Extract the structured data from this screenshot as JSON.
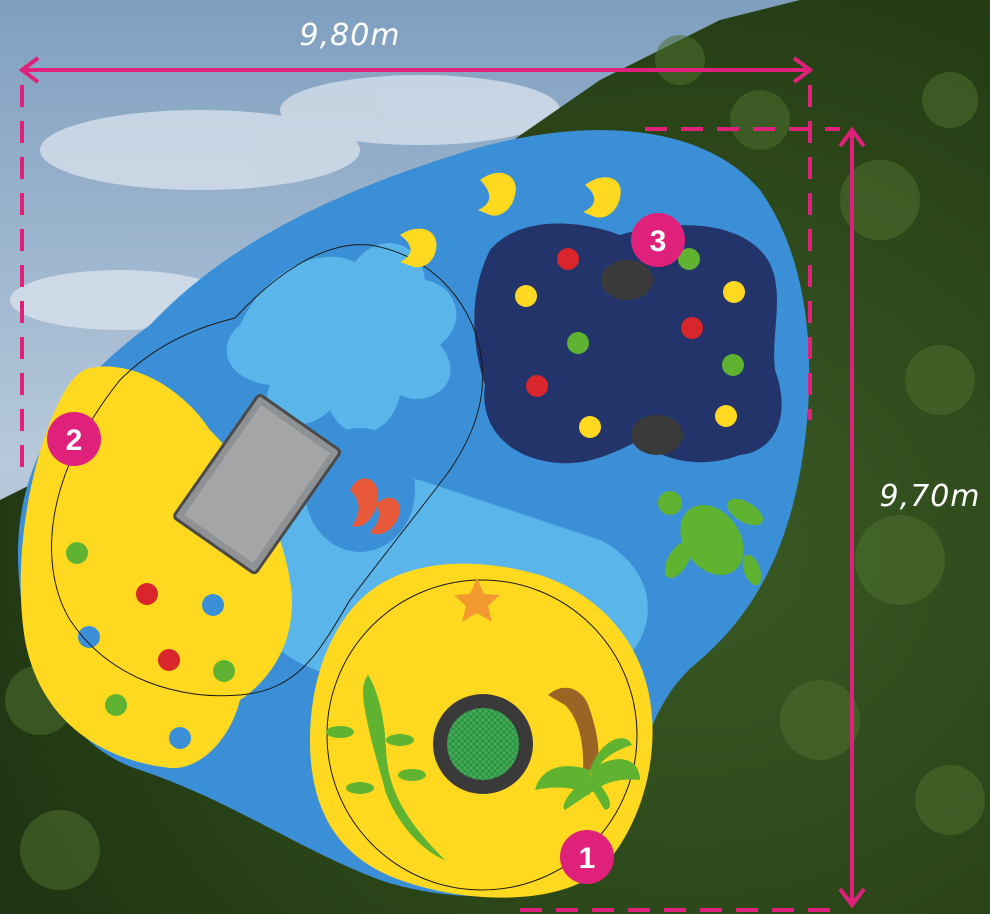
{
  "dimensions": {
    "width_label": "9,80m",
    "height_label": "9,70m"
  },
  "markers": [
    {
      "number": "1"
    },
    {
      "number": "2"
    },
    {
      "number": "3"
    }
  ],
  "colors": {
    "accent_magenta": "#e0217b",
    "water_dark": "#3b8fd6",
    "water_light": "#5ab6ea",
    "deep_navy": "#23346b",
    "sand_yellow": "#ffd91f",
    "sky": "#9cb9d4",
    "forest": "#2d4a1c",
    "fish_yellow": "#ffd91f",
    "turtle_green": "#5fb331",
    "gator_green": "#5fb331",
    "coral_red": "#e85a3a",
    "slide_grey": "#a3a5a7"
  },
  "icons": [
    "fish-icon",
    "turtle-icon",
    "alligator-icon",
    "palm-tree-icon",
    "starfish-icon",
    "shrimp-icon",
    "trampoline-icon",
    "slide-icon"
  ]
}
